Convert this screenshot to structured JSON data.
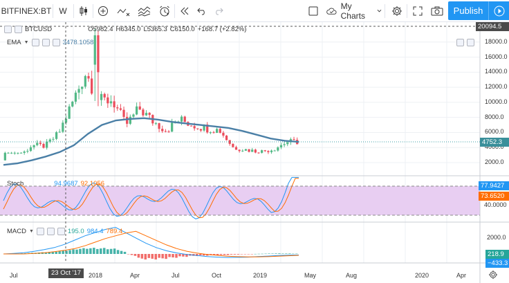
{
  "toolbar": {
    "symbol": "BITFINEX:BT",
    "interval": "W",
    "my_charts": "My Charts",
    "publish": "Publish",
    "icons": [
      "candles-icon",
      "add-indicator-icon",
      "indicators-icon",
      "compare-icon",
      "alert-icon",
      "replay-icon",
      "undo-icon",
      "redo-icon",
      "fullscreen-box-icon",
      "cloud-icon",
      "settings-icon",
      "fullscreen-icon",
      "camera-icon",
      "play-icon"
    ]
  },
  "main_legend": {
    "symbol": "BTCUSD",
    "open": "O5982.4",
    "high": "H6345.0",
    "low": "L5365.3",
    "close": "C6150.0",
    "change": "+168.7 (+2.82%)"
  },
  "ema_legend": {
    "label": "EMA",
    "value": "3478.1058"
  },
  "stoch_legend": {
    "label": "Stoch",
    "k": "94.9687",
    "d": "92.1056"
  },
  "macd_legend": {
    "label": "MACD",
    "hist": "195.0",
    "macd": "984.4",
    "signal": "789.4"
  },
  "price_axis": {
    "ticks": [
      "18000.0",
      "16000.0",
      "14000.0",
      "12000.0",
      "10000.0",
      "8000.0",
      "6000.0",
      "4000.0",
      "2000.0"
    ],
    "crosshair_price": "20094.5",
    "last_price": "4752.3"
  },
  "stoch_axis": {
    "k_tag": "77.9427",
    "d_tag": "73.6520",
    "tick": "40.0000"
  },
  "macd_axis": {
    "tick": "2000.0",
    "tag1": "218.9",
    "tag2": "−433.3"
  },
  "time_axis": {
    "labels": [
      "Jul",
      "2018",
      "Apr",
      "Jul",
      "Oct",
      "2019",
      "May",
      "Aug",
      "2020",
      "Apr"
    ],
    "crosshair_date": "23 Oct '17"
  },
  "colors": {
    "up": "#53b987",
    "down": "#eb4d5c",
    "ema": "#4a7fa6",
    "stoch_k": "#2196f3",
    "stoch_d": "#ff6d00",
    "stoch_band": "#e1bee7",
    "macd": "#2196f3",
    "signal": "#ff6d00",
    "accent": "#2196f3"
  },
  "chart_data": {
    "type": "line",
    "title": "BTCUSD",
    "ylabel": "",
    "xlabel": "",
    "ylim": [
      0,
      20094.5
    ],
    "x": [
      "2017-06",
      "2017-07",
      "2017-08",
      "2017-09",
      "2017-10",
      "2017-11",
      "2017-12",
      "2018-01",
      "2018-02",
      "2018-03",
      "2018-04",
      "2018-05",
      "2018-06",
      "2018-07",
      "2018-08",
      "2018-09",
      "2018-10",
      "2018-11",
      "2018-12",
      "2019-01",
      "2019-02",
      "2019-03"
    ],
    "series": [
      {
        "name": "BTCUSD",
        "values": [
          2500,
          2700,
          4300,
          4200,
          5900,
          9900,
          14000,
          10200,
          10300,
          7000,
          9200,
          7500,
          6300,
          7700,
          7000,
          6600,
          6300,
          4000,
          3700,
          3450,
          3800,
          4750
        ]
      },
      {
        "name": "EMA",
        "values": [
          1700,
          1900,
          2300,
          2800,
          3400,
          4300,
          5800,
          7000,
          7600,
          7800,
          7900,
          7700,
          7400,
          7200,
          7000,
          6800,
          6600,
          6200,
          5700,
          5200,
          4900,
          4750
        ]
      }
    ]
  }
}
